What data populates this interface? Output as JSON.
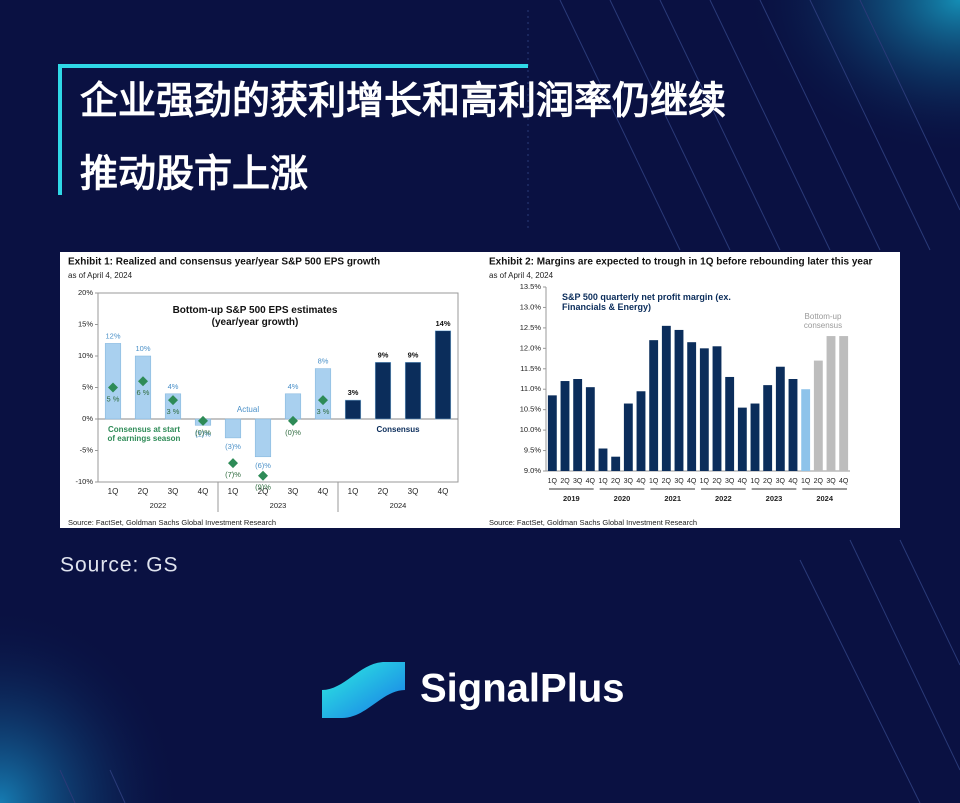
{
  "header": {
    "title_lines": [
      "企业强劲的获利增长和高利润率仍继续",
      "推动股市上涨"
    ]
  },
  "source": "Source: GS",
  "brand": "SignalPlus",
  "chart_data": [
    {
      "type": "bar",
      "exhibit": "Exhibit 1: Realized and consensus year/year S&P 500 EPS growth",
      "subtitle": "as of April 4, 2024",
      "title": "Bottom-up S&P 500 EPS estimates (year/year growth)",
      "categories": [
        "1Q",
        "2Q",
        "3Q",
        "4Q",
        "1Q",
        "2Q",
        "3Q",
        "4Q",
        "1Q",
        "2Q",
        "3Q",
        "4Q"
      ],
      "groups": [
        "2022",
        "2023",
        "2024"
      ],
      "series": [
        {
          "name": "Actual",
          "color": "#a9d0ef",
          "values": [
            12,
            10,
            4,
            -1,
            -3,
            -6,
            4,
            8,
            null,
            null,
            null,
            null
          ],
          "value_labels": [
            "12%",
            "10%",
            "4%",
            "(1)%",
            "(3)%",
            "(6)%",
            "4%",
            "8%",
            null,
            null,
            null,
            null
          ]
        },
        {
          "name": "Consensus",
          "color": "#0b2d5b",
          "values": [
            null,
            null,
            null,
            null,
            null,
            null,
            null,
            null,
            3,
            9,
            9,
            14
          ],
          "value_labels": [
            null,
            null,
            null,
            null,
            null,
            null,
            null,
            null,
            "3%",
            "9%",
            "9%",
            "14%"
          ]
        },
        {
          "name": "Consensus at start of earnings season",
          "color": "#2e8b57",
          "marker": "diamond",
          "values": [
            5,
            6,
            3,
            -0.3,
            -7,
            -9,
            -0.3,
            3,
            null,
            null,
            null,
            null
          ],
          "value_labels": [
            "5 %",
            "6 %",
            "3 %",
            "(0)%",
            "(7)%",
            "(9)%",
            "(0)%",
            "3 %",
            null,
            null,
            null,
            null
          ]
        }
      ],
      "ylim": [
        -10,
        20
      ],
      "yticks": [
        {
          "value": -10,
          "label": "-10%"
        },
        {
          "value": -5,
          "label": "-5%"
        },
        {
          "value": 0,
          "label": "0%"
        },
        {
          "value": 5,
          "label": "5%"
        },
        {
          "value": 10,
          "label": "10%"
        },
        {
          "value": 15,
          "label": "15%"
        },
        {
          "value": 20,
          "label": "20%"
        }
      ],
      "source": "Source: FactSet, Goldman Sachs Global Investment Research"
    },
    {
      "type": "bar",
      "exhibit": "Exhibit 2: Margins are expected to trough in 1Q before rebounding later this year",
      "subtitle": "as of April 4, 2024",
      "title": "S&P 500 quarterly net profit margin (ex. Financials & Energy)",
      "annotation": "Bottom-up consensus",
      "categories": [
        "1Q",
        "2Q",
        "3Q",
        "4Q",
        "1Q",
        "2Q",
        "3Q",
        "4Q",
        "1Q",
        "2Q",
        "3Q",
        "4Q",
        "1Q",
        "2Q",
        "3Q",
        "4Q",
        "1Q",
        "2Q",
        "3Q",
        "4Q",
        "1Q",
        "2Q",
        "3Q",
        "4Q"
      ],
      "groups": [
        "2019",
        "2020",
        "2021",
        "2022",
        "2023",
        "2024"
      ],
      "values": [
        10.85,
        11.2,
        11.25,
        11.05,
        9.55,
        9.35,
        10.65,
        10.95,
        12.2,
        12.55,
        12.45,
        12.15,
        12.0,
        12.05,
        11.3,
        10.55,
        10.65,
        11.1,
        11.55,
        11.25,
        11.0,
        11.7,
        12.3,
        12.3
      ],
      "colors": [
        "#0b2d5b",
        "#0b2d5b",
        "#0b2d5b",
        "#0b2d5b",
        "#0b2d5b",
        "#0b2d5b",
        "#0b2d5b",
        "#0b2d5b",
        "#0b2d5b",
        "#0b2d5b",
        "#0b2d5b",
        "#0b2d5b",
        "#0b2d5b",
        "#0b2d5b",
        "#0b2d5b",
        "#0b2d5b",
        "#0b2d5b",
        "#0b2d5b",
        "#0b2d5b",
        "#0b2d5b",
        "#8ec3ea",
        "#bdbdbd",
        "#bdbdbd",
        "#bdbdbd"
      ],
      "ylim": [
        9,
        13.5
      ],
      "yticks": [
        {
          "value": 9,
          "label": "9.0%"
        },
        {
          "value": 9.5,
          "label": "9.5%"
        },
        {
          "value": 10,
          "label": "10.0%"
        },
        {
          "value": 10.5,
          "label": "10.5%"
        },
        {
          "value": 11,
          "label": "11.0%"
        },
        {
          "value": 11.5,
          "label": "11.5%"
        },
        {
          "value": 12,
          "label": "12.0%"
        },
        {
          "value": 12.5,
          "label": "12.5%"
        },
        {
          "value": 13,
          "label": "13.0%"
        },
        {
          "value": 13.5,
          "label": "13.5%"
        }
      ],
      "source": "Source: FactSet, Goldman Sachs Global Investment Research"
    }
  ]
}
